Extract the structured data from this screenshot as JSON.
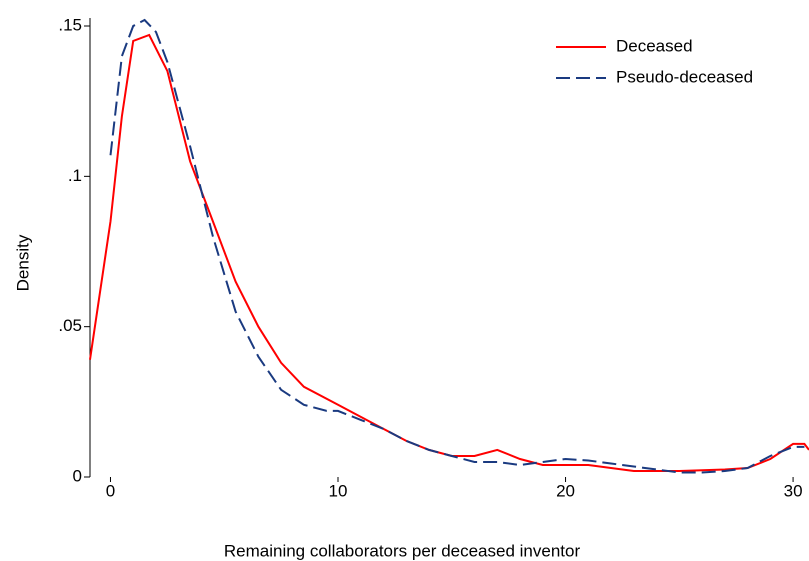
{
  "chart_data": {
    "type": "line",
    "x_label": "Remaining collaborators per deceased inventor",
    "y_label": "Density",
    "xlim": [
      -0.9,
      30.7
    ],
    "ylim": [
      0,
      0.152
    ],
    "xticks": [
      0,
      10,
      20,
      30
    ],
    "yticks": [
      0,
      {
        "value": 0.05,
        "label": ".05"
      },
      {
        "value": 0.1,
        "label": ".1"
      },
      {
        "value": 0.15,
        "label": ".15"
      }
    ],
    "legend": "top-right",
    "series": [
      {
        "name": "Deceased",
        "color": "#ff0000",
        "dash": false,
        "x": [
          -0.9,
          0,
          0.5,
          1,
          1.7,
          2.5,
          3.5,
          4.5,
          5.5,
          6.5,
          7.5,
          8.5,
          10,
          11,
          12,
          13,
          14,
          15,
          16,
          17,
          18,
          19,
          20,
          21,
          22,
          23,
          25,
          27,
          28,
          29,
          30,
          30.5,
          30.7
        ],
        "values": [
          0.039,
          0.085,
          0.12,
          0.145,
          0.147,
          0.135,
          0.105,
          0.085,
          0.065,
          0.05,
          0.038,
          0.03,
          0.024,
          0.02,
          0.016,
          0.012,
          0.009,
          0.007,
          0.007,
          0.009,
          0.006,
          0.004,
          0.004,
          0.004,
          0.003,
          0.002,
          0.002,
          0.0025,
          0.003,
          0.006,
          0.011,
          0.011,
          0.009
        ]
      },
      {
        "name": "Pseudo-deceased",
        "color": "#1a3a80",
        "dash": true,
        "x": [
          0,
          0.5,
          1,
          1.5,
          2,
          2.5,
          3.5,
          4.5,
          5.5,
          6.5,
          7.5,
          8.5,
          9.5,
          10,
          11,
          12,
          13,
          14,
          15,
          16,
          17,
          18,
          19,
          20,
          21,
          22,
          23,
          24,
          25,
          26,
          27,
          28,
          29,
          30,
          30.5
        ],
        "values": [
          0.107,
          0.14,
          0.15,
          0.152,
          0.148,
          0.138,
          0.11,
          0.08,
          0.055,
          0.04,
          0.029,
          0.024,
          0.022,
          0.022,
          0.019,
          0.016,
          0.012,
          0.009,
          0.007,
          0.005,
          0.005,
          0.004,
          0.005,
          0.006,
          0.0055,
          0.0045,
          0.0035,
          0.0025,
          0.0015,
          0.0015,
          0.002,
          0.003,
          0.007,
          0.01,
          0.01
        ]
      }
    ]
  }
}
